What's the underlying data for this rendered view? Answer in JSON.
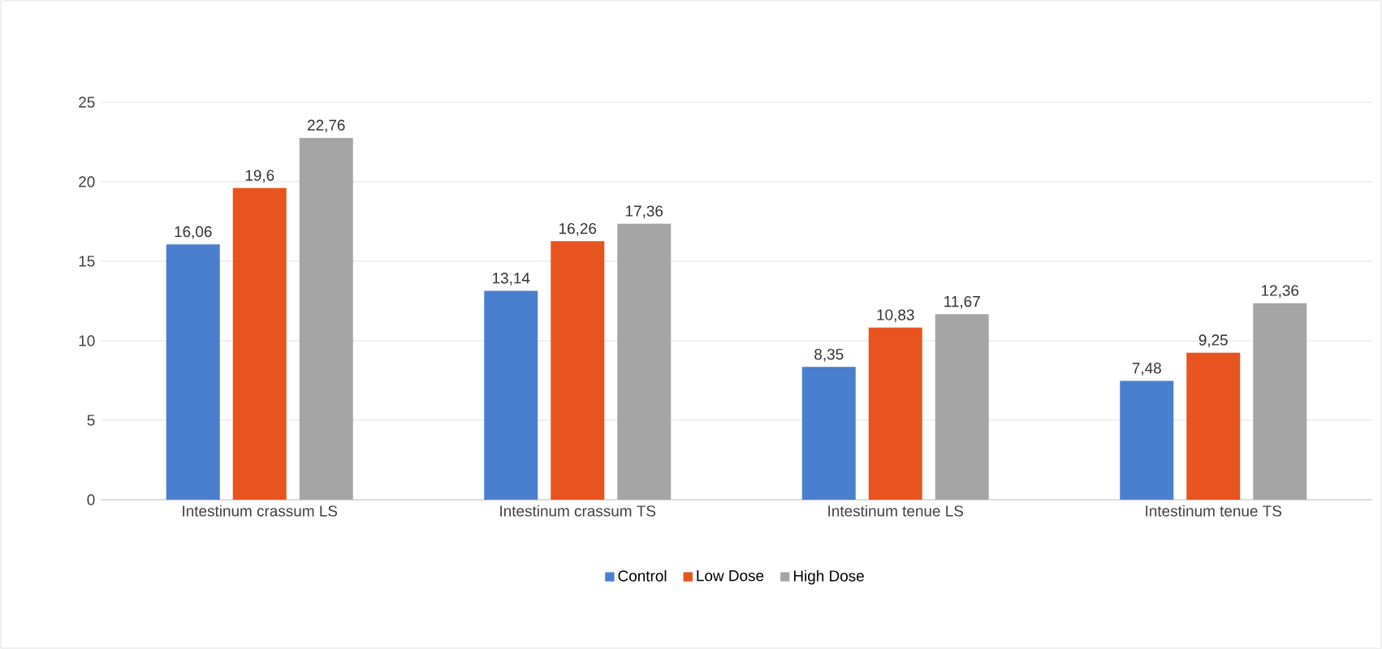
{
  "chart_data": {
    "type": "bar",
    "categories": [
      "Intestinum crassum LS",
      "Intestinum crassum TS",
      "Intestinum tenue LS",
      "Intestinum tenue TS"
    ],
    "series": [
      {
        "name": "Control",
        "color": "#4a7ecf",
        "values": [
          16.06,
          13.14,
          8.35,
          7.48
        ],
        "value_labels": [
          "16,06",
          "13,14",
          "8,35",
          "7,48"
        ]
      },
      {
        "name": "Low Dose",
        "color": "#e8541f",
        "values": [
          19.6,
          16.26,
          10.83,
          9.25
        ],
        "value_labels": [
          "19,6",
          "16,26",
          "10,83",
          "9,25"
        ]
      },
      {
        "name": "High Dose",
        "color": "#a5a5a5",
        "values": [
          22.76,
          17.36,
          11.67,
          12.36
        ],
        "value_labels": [
          "22,76",
          "17,36",
          "11,67",
          "12,36"
        ]
      }
    ],
    "ylim": [
      0,
      25
    ],
    "yticks": [
      0,
      5,
      10,
      15,
      20,
      25
    ],
    "grid": "y",
    "legend": "bottom"
  }
}
